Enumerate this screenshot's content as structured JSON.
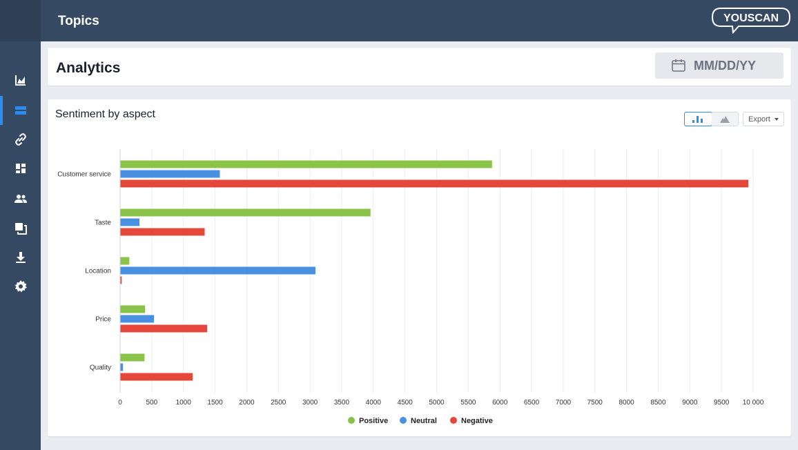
{
  "header": {
    "title": "Topics",
    "logo_text": "YOUSCAN"
  },
  "sidebar": {
    "items": [
      {
        "icon": "chart-area-icon",
        "active": false
      },
      {
        "icon": "topics-icon",
        "active": true
      },
      {
        "icon": "link-icon",
        "active": false
      },
      {
        "icon": "dashboard-icon",
        "active": false
      },
      {
        "icon": "people-icon",
        "active": false
      },
      {
        "icon": "copy-icon",
        "active": false
      },
      {
        "icon": "download-icon",
        "active": false
      },
      {
        "icon": "gear-icon",
        "active": false
      }
    ]
  },
  "analytics": {
    "title": "Analytics",
    "date_placeholder": "MM/DD/YY"
  },
  "chart_card": {
    "title": "Sentiment by aspect",
    "export_label": "Export",
    "chart_types": [
      "bar-chart-icon",
      "mountain-chart-icon"
    ]
  },
  "colors": {
    "positive": "#8bc34a",
    "neutral": "#4a90e2",
    "negative": "#e5483b",
    "accent": "#2d8cf0",
    "nav": "#364963"
  },
  "chart_data": {
    "type": "bar",
    "orientation": "horizontal",
    "categories": [
      "Customer service",
      "Taste",
      "Location",
      "Price",
      "Quality"
    ],
    "series": [
      {
        "name": "Positive",
        "color": "#8bc34a",
        "values": [
          5870,
          3950,
          140,
          390,
          380
        ]
      },
      {
        "name": "Neutral",
        "color": "#4a90e2",
        "values": [
          1570,
          300,
          3080,
          530,
          40
        ]
      },
      {
        "name": "Negative",
        "color": "#e5483b",
        "values": [
          9920,
          1330,
          20,
          1370,
          1140
        ]
      }
    ],
    "xlim": [
      0,
      10000
    ],
    "xticks": [
      0,
      500,
      1000,
      1500,
      2000,
      2500,
      3000,
      3500,
      4000,
      4500,
      5000,
      5500,
      6000,
      6500,
      7000,
      7500,
      8000,
      8500,
      9000,
      9500,
      10000
    ],
    "xtick_labels": [
      "0",
      "500",
      "1000",
      "1500",
      "2000",
      "2500",
      "3000",
      "3500",
      "4000",
      "4500",
      "5000",
      "5500",
      "6000",
      "6500",
      "7000",
      "7500",
      "8000",
      "8500",
      "9000",
      "9500",
      "10 000"
    ],
    "grid": true,
    "legend_position": "bottom"
  }
}
